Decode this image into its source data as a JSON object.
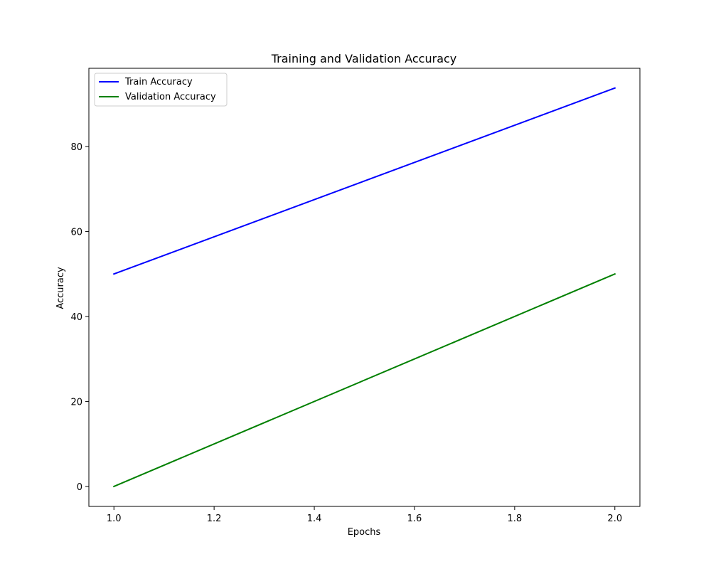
{
  "chart_data": {
    "type": "line",
    "title": "Training and Validation Accuracy",
    "xlabel": "Epochs",
    "ylabel": "Accuracy",
    "xlim": [
      0.95,
      2.05
    ],
    "ylim": [
      -4.7,
      98.4
    ],
    "xticks": [
      1.0,
      1.2,
      1.4,
      1.6,
      1.8,
      2.0
    ],
    "xtick_labels": [
      "1.0",
      "1.2",
      "1.4",
      "1.6",
      "1.8",
      "2.0"
    ],
    "yticks": [
      0,
      20,
      40,
      60,
      80
    ],
    "ytick_labels": [
      "0",
      "20",
      "40",
      "60",
      "80"
    ],
    "grid": false,
    "legend": "top-left",
    "x": [
      1.0,
      2.0
    ],
    "series": [
      {
        "name": "Train Accuracy",
        "color": "#0000ff",
        "values": [
          50.0,
          93.75
        ]
      },
      {
        "name": "Validation Accuracy",
        "color": "#008000",
        "values": [
          0.0,
          50.0
        ]
      }
    ]
  }
}
